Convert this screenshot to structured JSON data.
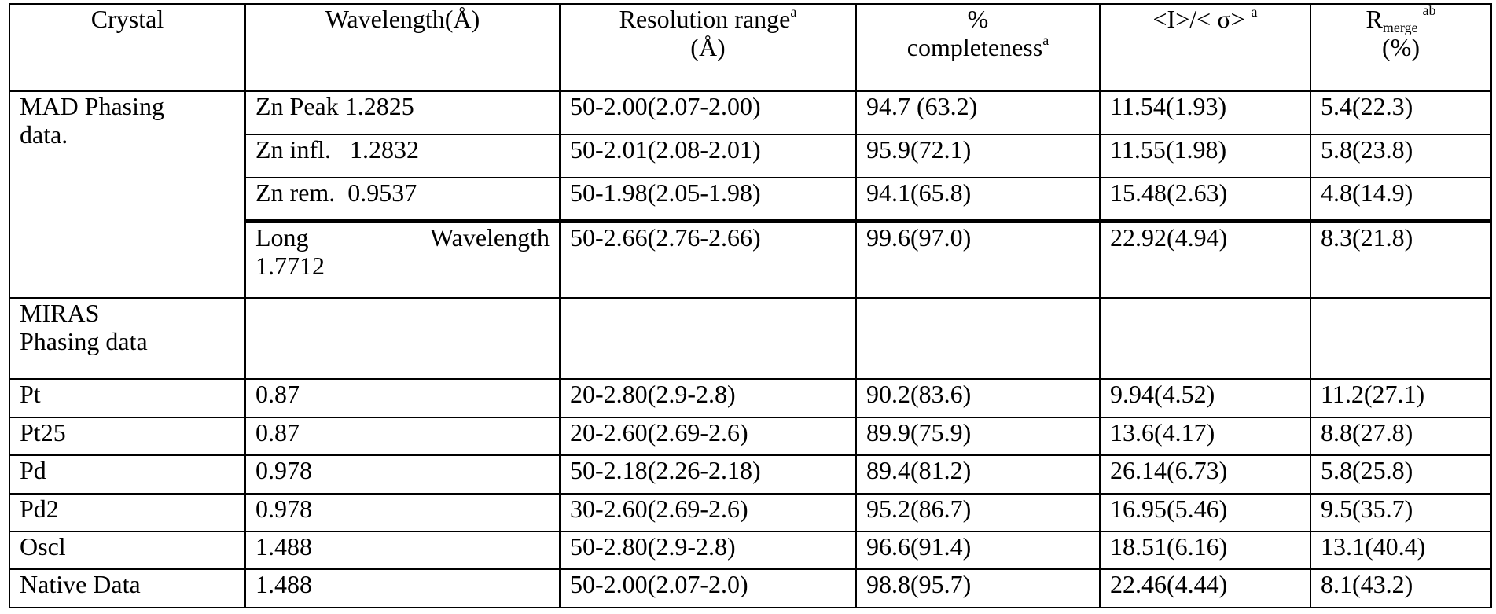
{
  "header": {
    "crystal": "Crystal",
    "wavelength": "Wavelength(Å)",
    "resolution": "Resolution range",
    "resolution_sup": "a",
    "resolution_unit": "(Å)",
    "completeness_pct": "%",
    "completeness": "completeness",
    "completeness_sup": "a",
    "isigma": "<I>/< σ>",
    "isigma_sup": "a",
    "rmerge_r": "R",
    "rmerge_sub": "merge",
    "rmerge_sup": "ab",
    "rmerge_unit": "(%)"
  },
  "mad_group": {
    "label_line1": "MAD  Phasing",
    "label_line2": "data."
  },
  "mad_rows": [
    {
      "wavelength": "Zn Peak 1.2825",
      "resolution": "50-2.00(2.07-2.00)",
      "completeness": "94.7 (63.2)",
      "isigma": "11.54(1.93)",
      "rmerge": "5.4(22.3)"
    },
    {
      "wavelength": "Zn infl.   1.2832",
      "resolution": "50-2.01(2.08-2.01)",
      "completeness": "95.9(72.1)",
      "isigma": "11.55(1.98)",
      "rmerge": "5.8(23.8)"
    },
    {
      "wavelength": "Zn rem.  0.9537",
      "resolution": "50-1.98(2.05-1.98)",
      "completeness": "94.1(65.8)",
      "isigma": "15.48(2.63)",
      "rmerge": "4.8(14.9)"
    }
  ],
  "long_row": {
    "wavelength_word1": "Long",
    "wavelength_word2": "Wavelength",
    "wavelength_line2": "1.7712",
    "resolution": "50-2.66(2.76-2.66)",
    "completeness": "99.6(97.0)",
    "isigma": "22.92(4.94)",
    "rmerge": "8.3(21.8)"
  },
  "miras_group": {
    "label_line1": "MIRAS",
    "label_line2": "Phasing data"
  },
  "miras_rows": [
    {
      "crystal": "Pt",
      "wavelength": "0.87",
      "resolution": "20-2.80(2.9-2.8)",
      "completeness": "90.2(83.6)",
      "isigma": "9.94(4.52)",
      "rmerge": "11.2(27.1)"
    },
    {
      "crystal": "Pt25",
      "wavelength": "0.87",
      "resolution": "20-2.60(2.69-2.6)",
      "completeness": "89.9(75.9)",
      "isigma": "13.6(4.17)",
      "rmerge": "8.8(27.8)"
    },
    {
      "crystal": "Pd",
      "wavelength": "0.978",
      "resolution": "50-2.18(2.26-2.18)",
      "completeness": "89.4(81.2)",
      "isigma": "26.14(6.73)",
      "rmerge": "5.8(25.8)"
    },
    {
      "crystal": "Pd2",
      "wavelength": "0.978",
      "resolution": "30-2.60(2.69-2.6)",
      "completeness": "95.2(86.7)",
      "isigma": "16.95(5.46)",
      "rmerge": "9.5(35.7)"
    },
    {
      "crystal": "Oscl",
      "wavelength": "1.488",
      "resolution": "50-2.80(2.9-2.8)",
      "completeness": "96.6(91.4)",
      "isigma": "18.51(6.16)",
      "rmerge": "13.1(40.4)"
    },
    {
      "crystal": "Native Data",
      "wavelength": "1.488",
      "resolution": "50-2.00(2.07-2.0)",
      "completeness": "98.8(95.7)",
      "isigma": "22.46(4.44)",
      "rmerge": "8.1(43.2)"
    }
  ]
}
